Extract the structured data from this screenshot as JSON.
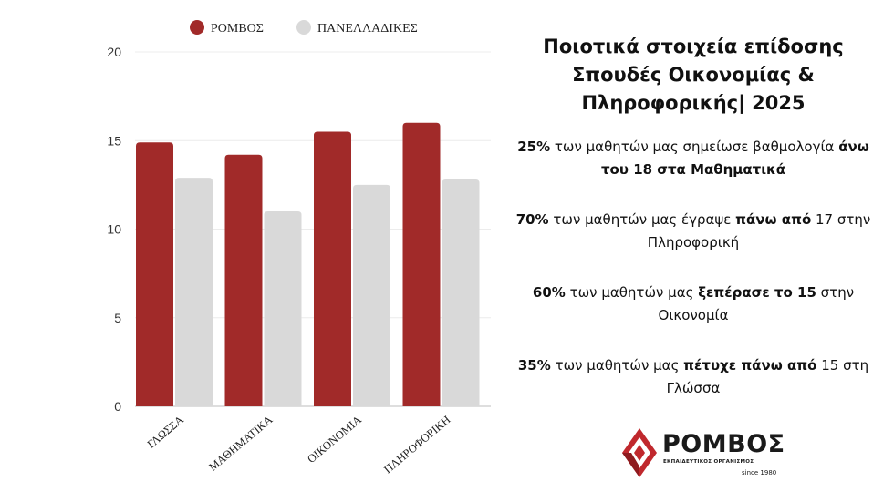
{
  "chart_data": {
    "type": "bar",
    "categories": [
      "ΓΛΩΣΣΑ",
      "ΜΑΘΗΜΑΤΙΚΑ",
      "ΟΙΚΟΝΟΜΙΑ",
      "ΠΛΗΡΟΦΟΡΙΚΗ"
    ],
    "series": [
      {
        "name": "ΡΟΜΒΟΣ",
        "color": "#a12a29",
        "values": [
          14.9,
          14.2,
          15.5,
          16.0
        ]
      },
      {
        "name": "ΠΑΝΕΛΛΑΔΙΚΕΣ",
        "color": "#d9d9d9",
        "values": [
          12.9,
          11.0,
          12.5,
          12.8
        ]
      }
    ],
    "ylim": [
      0,
      20
    ],
    "yticks": [
      0,
      5,
      10,
      15,
      20
    ],
    "grid": true,
    "legend": "top"
  },
  "panel": {
    "title_lines": [
      "Ποιοτικά στοιχεία επίδοσης",
      "Σπουδές Οικονομίας &",
      "Πληροφορικής| 2025"
    ],
    "stats": [
      {
        "pct": "25%",
        "mid": " των μαθητών μας σημείωσε βαθμολογία ",
        "bold": "άνω του 18 στα Μαθηματικά",
        "tail": ""
      },
      {
        "pct": "70%",
        "mid": " των μαθητών μας έγραψε ",
        "bold": "πάνω από",
        "tail": " 17 στην Πληροφορική"
      },
      {
        "pct": "60%",
        "mid": " των μαθητών μας ",
        "bold": "ξεπέρασε το 15",
        "tail": " στην Οικονομία"
      },
      {
        "pct": "35%",
        "mid": " των μαθητών μας ",
        "bold": "πέτυχε πάνω από",
        "tail": " 15 στη Γλώσσα"
      }
    ]
  },
  "logo": {
    "word": "ΡΟΜΒΟΣ",
    "subtitle": "ΕΚΠΑΙΔΕΥΤΙΚΟΣ ΟΡΓΑΝΙΣΜΟΣ",
    "since": "since 1980",
    "icon": "diamond-logo-icon",
    "color": "#c0282d"
  }
}
